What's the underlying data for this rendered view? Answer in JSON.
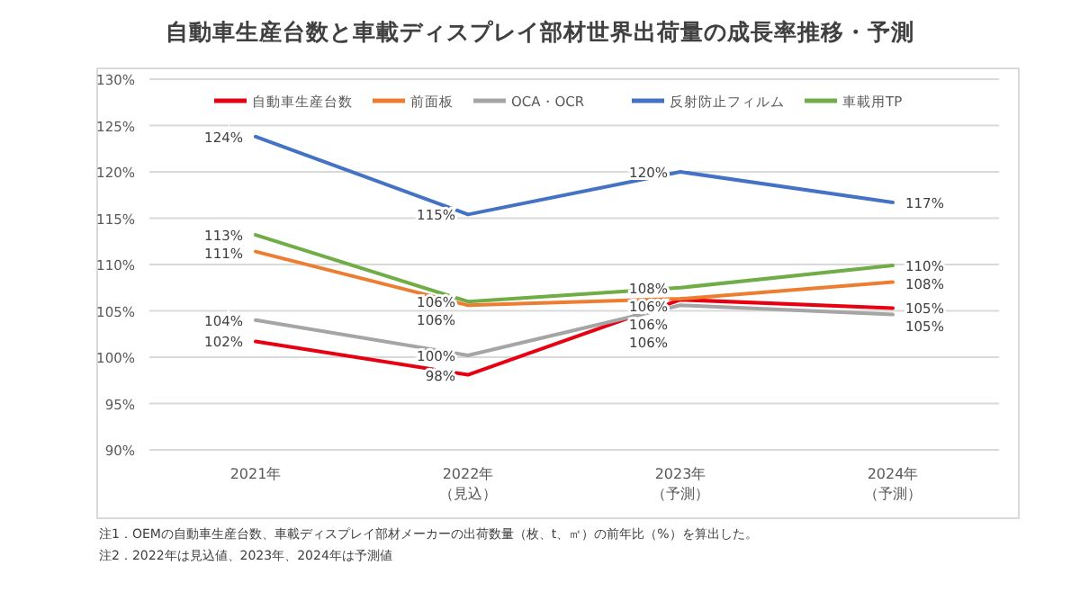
{
  "chart_data": {
    "type": "line",
    "title": "自動車生産台数と車載ディスプレイ部材世界出荷量の成長率推移・予測",
    "categories": [
      "2021年",
      "2022年（見込）",
      "2023年（予測）",
      "2024年（予測）"
    ],
    "series": [
      {
        "name": "自動車生産台数",
        "color": "#e60012",
        "values": [
          101.7,
          98.1,
          106.2,
          105.3
        ],
        "value_labels": [
          "102%",
          "98%",
          "106%",
          "105%"
        ]
      },
      {
        "name": "前面板",
        "color": "#ed7d31",
        "values": [
          111.4,
          105.6,
          106.3,
          108.1
        ],
        "value_labels": [
          "111%",
          "106%",
          "106%",
          "108%"
        ]
      },
      {
        "name": "OCA・OCR",
        "color": "#a5a5a5",
        "values": [
          104.0,
          100.2,
          105.6,
          104.6
        ],
        "value_labels": [
          "104%",
          "100%",
          "106%",
          "105%"
        ]
      },
      {
        "name": "反射防止フィルム",
        "color": "#4472c4",
        "values": [
          123.8,
          115.4,
          120.0,
          116.7
        ],
        "value_labels": [
          "124%",
          "115%",
          "120%",
          "117%"
        ]
      },
      {
        "name": "車載用TP",
        "color": "#70ad47",
        "values": [
          113.2,
          106.0,
          107.5,
          109.9
        ],
        "value_labels": [
          "113%",
          "106%",
          "108%",
          "110%"
        ]
      }
    ],
    "ylim": [
      90,
      130
    ],
    "yticks": [
      {
        "value": 90,
        "label": "90%"
      },
      {
        "value": 95,
        "label": "95%"
      },
      {
        "value": 100,
        "label": "100%"
      },
      {
        "value": 105,
        "label": "105%"
      },
      {
        "value": 110,
        "label": "110%"
      },
      {
        "value": 115,
        "label": "115%"
      },
      {
        "value": 120,
        "label": "120%"
      },
      {
        "value": 125,
        "label": "125%"
      },
      {
        "value": 130,
        "label": "130%"
      }
    ],
    "grid": "y",
    "legend": "top",
    "annotations": [
      "注1．OEMの自動車生産台数、車載ディスプレイ部材メーカーの出荷数量（枚、t、㎡）の前年比（%）を算出した。",
      "注2．2022年は見込値、2023年、2024年は予測値"
    ]
  }
}
